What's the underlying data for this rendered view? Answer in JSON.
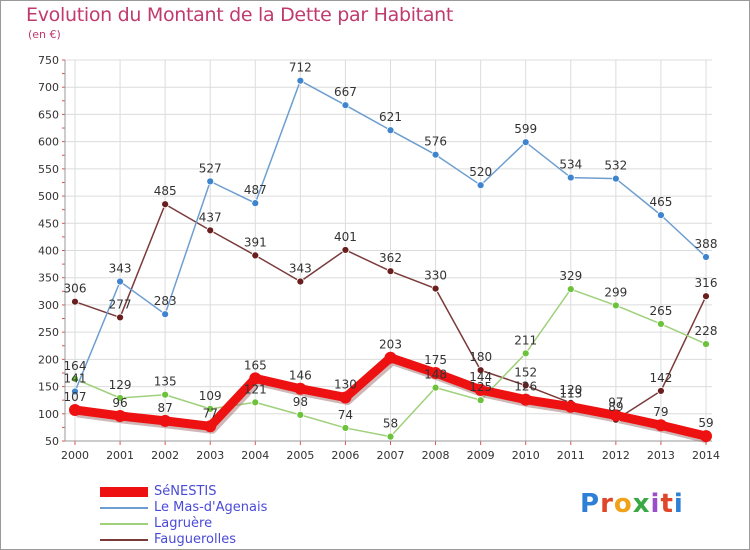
{
  "title": "Evolution du Montant de la Dette par Habitant",
  "subtitle": "(en €)",
  "brand": [
    "P",
    "r",
    "o",
    "x",
    "i",
    "t",
    "i"
  ],
  "brand_colors": [
    "#2e7fd6",
    "#e0472a",
    "#f0a21b",
    "#3aa845",
    "#9b4fc6",
    "#e0472a",
    "#2e7fd6"
  ],
  "chart_data": {
    "type": "line",
    "title": "Evolution du Montant de la Dette par Habitant",
    "subtitle": "(en €)",
    "ylim": [
      50,
      750
    ],
    "yticks": [
      "50",
      "100",
      "150",
      "200",
      "250",
      "300",
      "350",
      "400",
      "450",
      "500",
      "550",
      "600",
      "650",
      "700",
      "750"
    ],
    "x": [
      "2000",
      "2001",
      "2002",
      "2003",
      "2004",
      "2005",
      "2006",
      "2007",
      "2008",
      "2009",
      "2010",
      "2011",
      "2012",
      "2013",
      "2014"
    ],
    "grid": true,
    "legend_position": "bottom-left",
    "series": [
      {
        "name": "SéNESTIS",
        "color": "#ee1111",
        "marker_color": "#ee1111",
        "width": "thick",
        "values": [
          107,
          96,
          87,
          77,
          165,
          146,
          130,
          203,
          175,
          144,
          126,
          113,
          97,
          79,
          59
        ],
        "labels": [
          "107",
          "96",
          "87",
          "77",
          "165",
          "146",
          "130",
          "203",
          "175",
          "144",
          "126",
          "113",
          "97",
          "79",
          "59"
        ]
      },
      {
        "name": "Le Mas-d'Agenais",
        "color": "#6e9ed0",
        "marker_color": "#3f84cf",
        "width": "thin",
        "values": [
          141,
          343,
          283,
          527,
          487,
          712,
          667,
          621,
          576,
          520,
          599,
          534,
          532,
          465,
          388
        ],
        "labels": [
          "141",
          "343",
          "283",
          "527",
          "487",
          "712",
          "667",
          "621",
          "576",
          "520",
          "599",
          "534",
          "532",
          "465",
          "388"
        ]
      },
      {
        "name": "Lagruère",
        "color": "#9fd07a",
        "marker_color": "#6cc23a",
        "width": "thin",
        "values": [
          164,
          129,
          135,
          109,
          121,
          98,
          74,
          58,
          148,
          125,
          211,
          329,
          299,
          265,
          228
        ],
        "labels": [
          "164",
          "129",
          "135",
          "109",
          "121",
          "98",
          "74",
          "58",
          "148",
          "125",
          "211",
          "329",
          "299",
          "265",
          "228"
        ]
      },
      {
        "name": "Fauguerolles",
        "color": "#7a3a3a",
        "marker_color": "#6a1e1e",
        "width": "thin",
        "values": [
          306,
          277,
          485,
          437,
          391,
          343,
          401,
          362,
          330,
          180,
          152,
          120,
          89,
          142,
          316
        ],
        "labels": [
          "306",
          "277",
          "485",
          "437",
          "391",
          "343",
          "401",
          "362",
          "330",
          "180",
          "152",
          "120",
          "89",
          "142",
          "316"
        ]
      }
    ]
  }
}
